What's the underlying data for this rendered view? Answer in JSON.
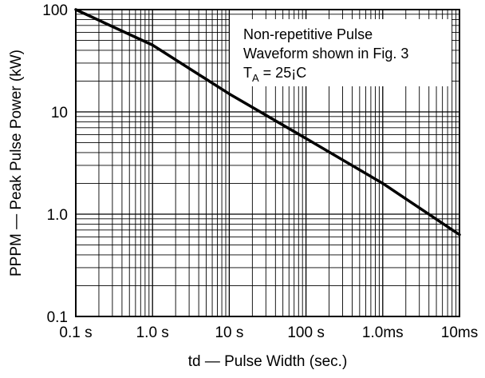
{
  "chart_data": {
    "type": "line",
    "xlabel": "td — Pulse Width (sec.)",
    "ylabel": "PPPM — Peak Pulse Power (kW)",
    "xscale": "log",
    "yscale": "log",
    "x_unit": "seconds",
    "xlim": [
      1e-07,
      0.01
    ],
    "ylim": [
      0.1,
      100
    ],
    "grid": true,
    "x_ticks": [
      {
        "value": 1e-07,
        "label": "0.1 s"
      },
      {
        "value": 1e-06,
        "label": "1.0 s"
      },
      {
        "value": 1e-05,
        "label": "10 s"
      },
      {
        "value": 0.0001,
        "label": "100 s"
      },
      {
        "value": 0.001,
        "label": "1.0ms"
      },
      {
        "value": 0.01,
        "label": "10ms"
      }
    ],
    "y_ticks": [
      {
        "value": 0.1,
        "label": "0.1"
      },
      {
        "value": 1,
        "label": "1.0"
      },
      {
        "value": 10,
        "label": "10"
      },
      {
        "value": 100,
        "label": "100"
      }
    ],
    "series": [
      {
        "x": [
          1e-07,
          1e-06,
          1e-05,
          0.0001,
          0.001,
          0.01
        ],
        "values": [
          100,
          45,
          15,
          5.5,
          2,
          0.63
        ]
      }
    ],
    "annotation": {
      "lines": [
        "Non-repetitive Pulse",
        "Waveform shown in Fig. 3"
      ],
      "temp_prefix": "T",
      "temp_subscript": "A",
      "temp_value": " = 25¡C",
      "placement": "top-right"
    },
    "colors": {
      "line": "#000000",
      "grid": "#000000",
      "background": "#ffffff"
    }
  }
}
